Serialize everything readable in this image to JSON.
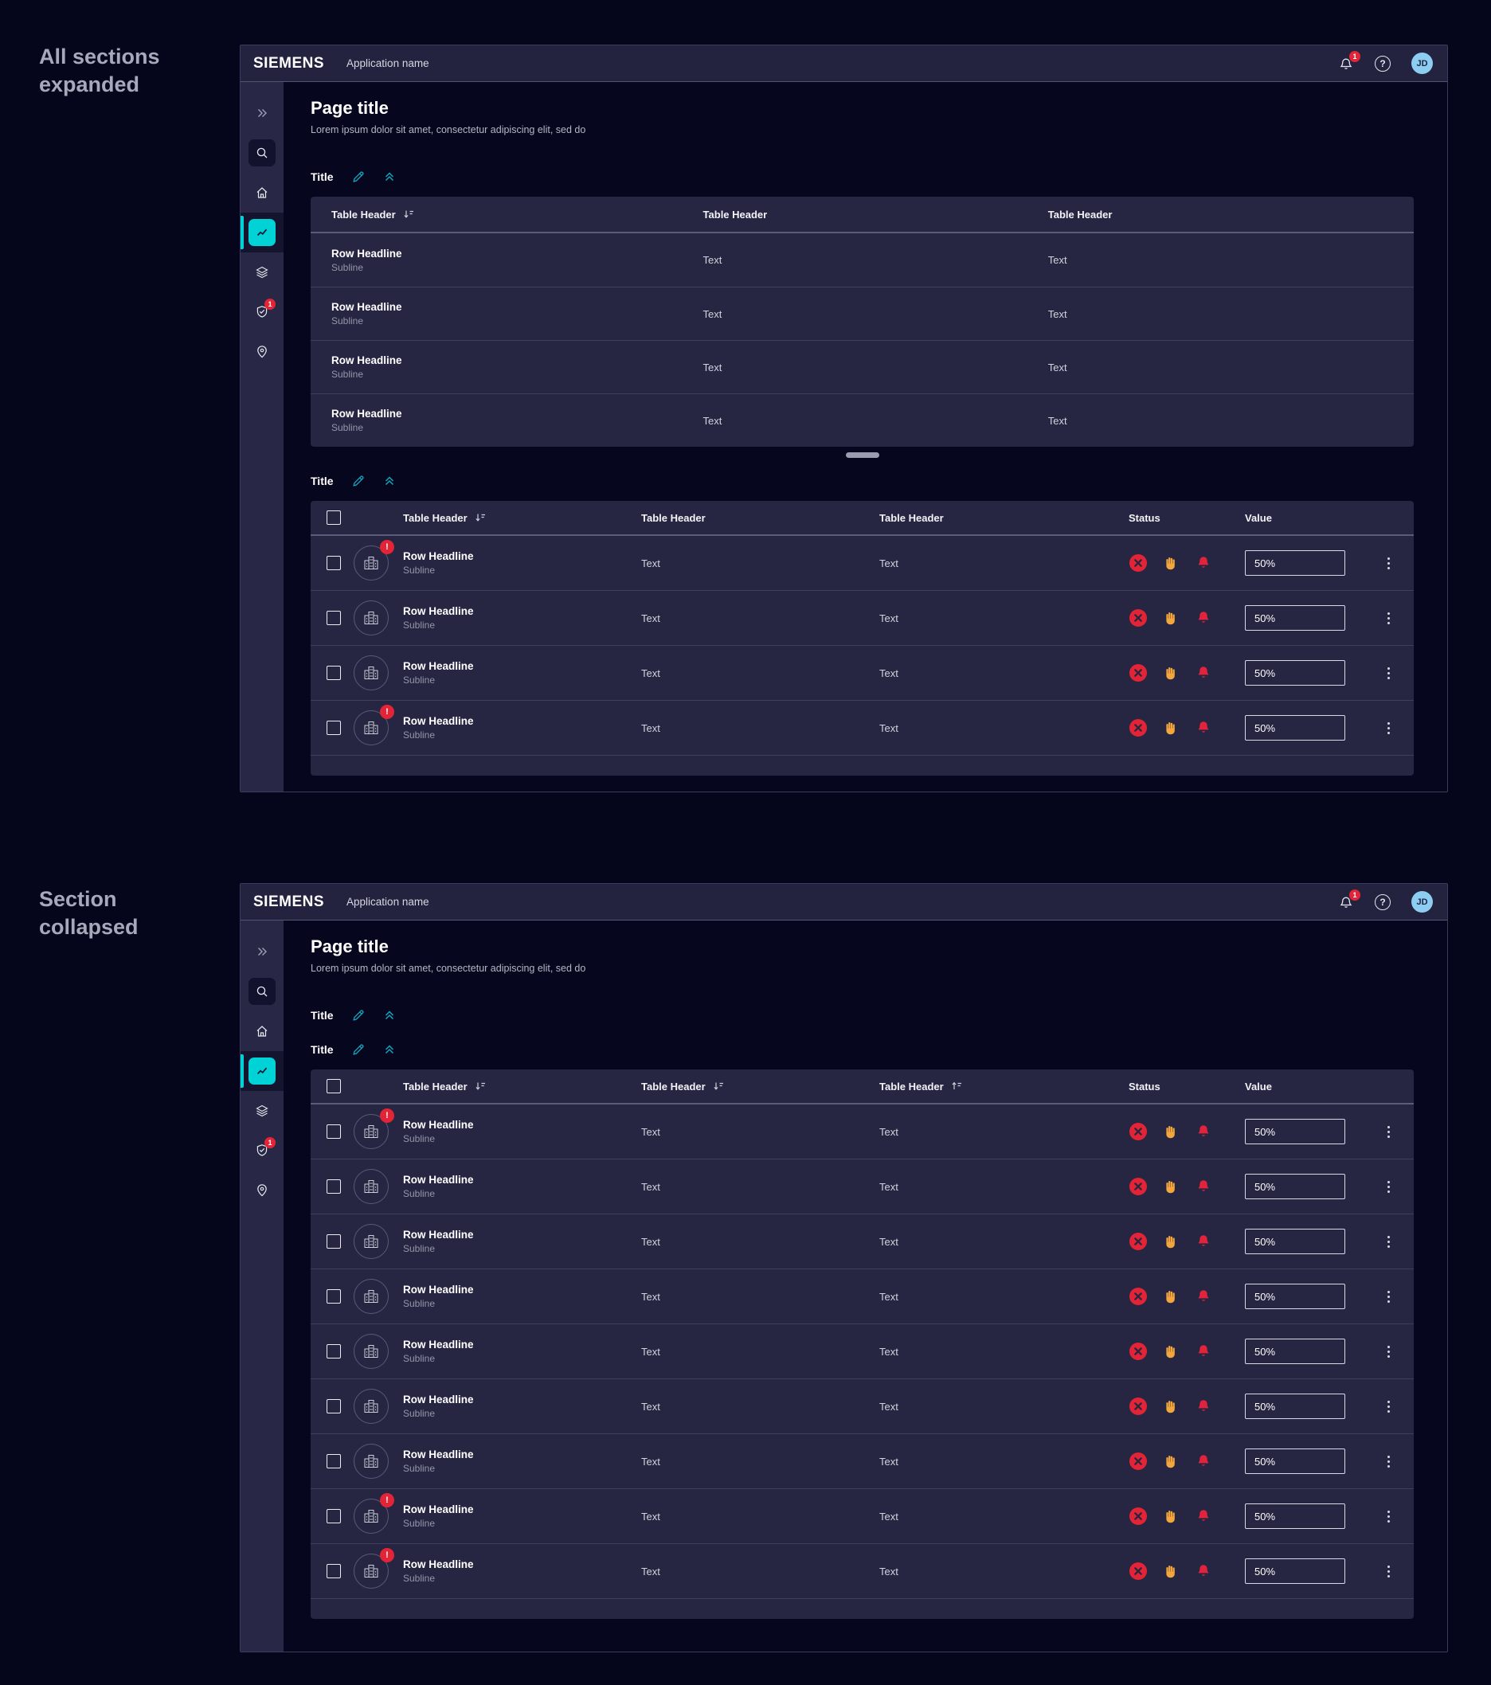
{
  "annotations": {
    "expanded_label": "All sections expanded",
    "collapsed_label": "Section collapsed"
  },
  "app": {
    "brand": "SIEMENS",
    "application_name": "Application name",
    "notification_count": "1",
    "sidebar_security_badge": "1",
    "avatar_initials": "JD",
    "page_title": "Page title",
    "page_subtitle": "Lorem ipsum dolor sit amet, consectetur adipiscing elit, sed do"
  },
  "colors": {
    "accent_teal": "#00d2d6",
    "icon_teal": "#12a7bd",
    "alert_red": "#e32437",
    "warning_orange": "#f2a63c",
    "avatar_blue": "#8ecdf2"
  },
  "win1": {
    "section1": {
      "title": "Title",
      "table": {
        "headers": [
          {
            "label": "Table Header",
            "sort": "desc"
          },
          {
            "label": "Table Header"
          },
          {
            "label": "Table Header"
          }
        ],
        "rows": [
          {
            "headline": "Row Headline",
            "subline": "Subline",
            "col2": "Text",
            "col3": "Text"
          },
          {
            "headline": "Row Headline",
            "subline": "Subline",
            "col2": "Text",
            "col3": "Text"
          },
          {
            "headline": "Row Headline",
            "subline": "Subline",
            "col2": "Text",
            "col3": "Text"
          },
          {
            "headline": "Row Headline",
            "subline": "Subline",
            "col2": "Text",
            "col3": "Text"
          }
        ]
      }
    },
    "section2": {
      "title": "Title",
      "table": {
        "headers": [
          {
            "label": "Table Header",
            "sort": "desc"
          },
          {
            "label": "Table Header"
          },
          {
            "label": "Table Header"
          }
        ],
        "status_header": "Status",
        "value_header": "Value",
        "rows": [
          {
            "headline": "Row Headline",
            "subline": "Subline",
            "col2": "Text",
            "col3": "Text",
            "value": "50%",
            "alert": true
          },
          {
            "headline": "Row Headline",
            "subline": "Subline",
            "col2": "Text",
            "col3": "Text",
            "value": "50%",
            "alert": false
          },
          {
            "headline": "Row Headline",
            "subline": "Subline",
            "col2": "Text",
            "col3": "Text",
            "value": "50%",
            "alert": false
          },
          {
            "headline": "Row Headline",
            "subline": "Subline",
            "col2": "Text",
            "col3": "Text",
            "value": "50%",
            "alert": true
          }
        ]
      }
    }
  },
  "win2": {
    "section1": {
      "title": "Title"
    },
    "section2": {
      "title": "Title",
      "table": {
        "headers": [
          {
            "label": "Table Header",
            "sort": "desc"
          },
          {
            "label": "Table Header",
            "sort": "desc"
          },
          {
            "label": "Table Header",
            "sort": "asc"
          }
        ],
        "status_header": "Status",
        "value_header": "Value",
        "rows": [
          {
            "headline": "Row Headline",
            "subline": "Subline",
            "col2": "Text",
            "col3": "Text",
            "value": "50%",
            "alert": true
          },
          {
            "headline": "Row Headline",
            "subline": "Subline",
            "col2": "Text",
            "col3": "Text",
            "value": "50%",
            "alert": false
          },
          {
            "headline": "Row Headline",
            "subline": "Subline",
            "col2": "Text",
            "col3": "Text",
            "value": "50%",
            "alert": false
          },
          {
            "headline": "Row Headline",
            "subline": "Subline",
            "col2": "Text",
            "col3": "Text",
            "value": "50%",
            "alert": false
          },
          {
            "headline": "Row Headline",
            "subline": "Subline",
            "col2": "Text",
            "col3": "Text",
            "value": "50%",
            "alert": false
          },
          {
            "headline": "Row Headline",
            "subline": "Subline",
            "col2": "Text",
            "col3": "Text",
            "value": "50%",
            "alert": false
          },
          {
            "headline": "Row Headline",
            "subline": "Subline",
            "col2": "Text",
            "col3": "Text",
            "value": "50%",
            "alert": false
          },
          {
            "headline": "Row Headline",
            "subline": "Subline",
            "col2": "Text",
            "col3": "Text",
            "value": "50%",
            "alert": true
          },
          {
            "headline": "Row Headline",
            "subline": "Subline",
            "col2": "Text",
            "col3": "Text",
            "value": "50%",
            "alert": true
          }
        ]
      }
    }
  }
}
